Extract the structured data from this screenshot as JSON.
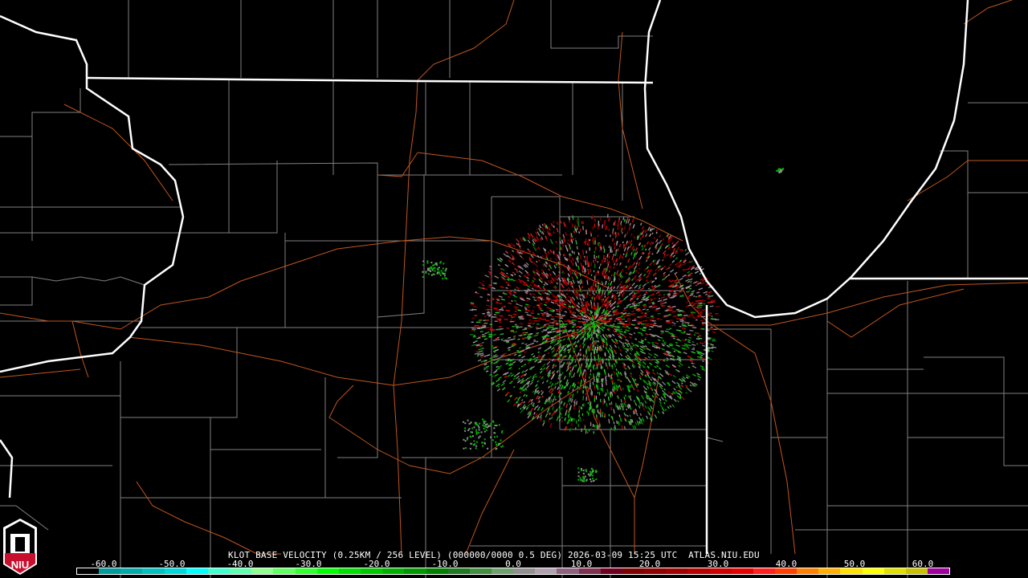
{
  "caption": "KLOT BASE VELOCITY (0.25KM / 256 LEVEL) (000000/0000 0.5 DEG) 2026-03-09 15:25 UTC  ATLAS.NIU.EDU",
  "logo": {
    "text": "NIU"
  },
  "colorbar": {
    "labels": [
      "-60.0",
      "-50.0",
      "-40.0",
      "-30.0",
      "-20.0",
      "-10.0",
      "0.0",
      "10.0",
      "20.0",
      "30.0",
      "40.0",
      "50.0",
      "60.0"
    ],
    "range": [
      -64,
      64
    ],
    "colors": [
      "#000000",
      "#009a9a",
      "#00aaaa",
      "#00c0c0",
      "#00d8d8",
      "#00ffff",
      "#40ffd0",
      "#60ffb0",
      "#90ff90",
      "#60ff60",
      "#30ff30",
      "#00ff00",
      "#00e000",
      "#00c800",
      "#00b000",
      "#009800",
      "#008000",
      "#207820",
      "#409040",
      "#70a070",
      "#909090",
      "#b0a0b0",
      "#906080",
      "#803050",
      "#700020",
      "#800000",
      "#900000",
      "#a00000",
      "#b80000",
      "#d00000",
      "#e80000",
      "#ff2020",
      "#ff4000",
      "#ff8000",
      "#ffb000",
      "#ffe000",
      "#ffff00",
      "#e0e000",
      "#c8c000",
      "#a000a0"
    ]
  },
  "map": {
    "state_border_color": "#ffffff",
    "county_color": "#808080",
    "road_color": "#c0561e",
    "radar_site": "KLOT"
  }
}
